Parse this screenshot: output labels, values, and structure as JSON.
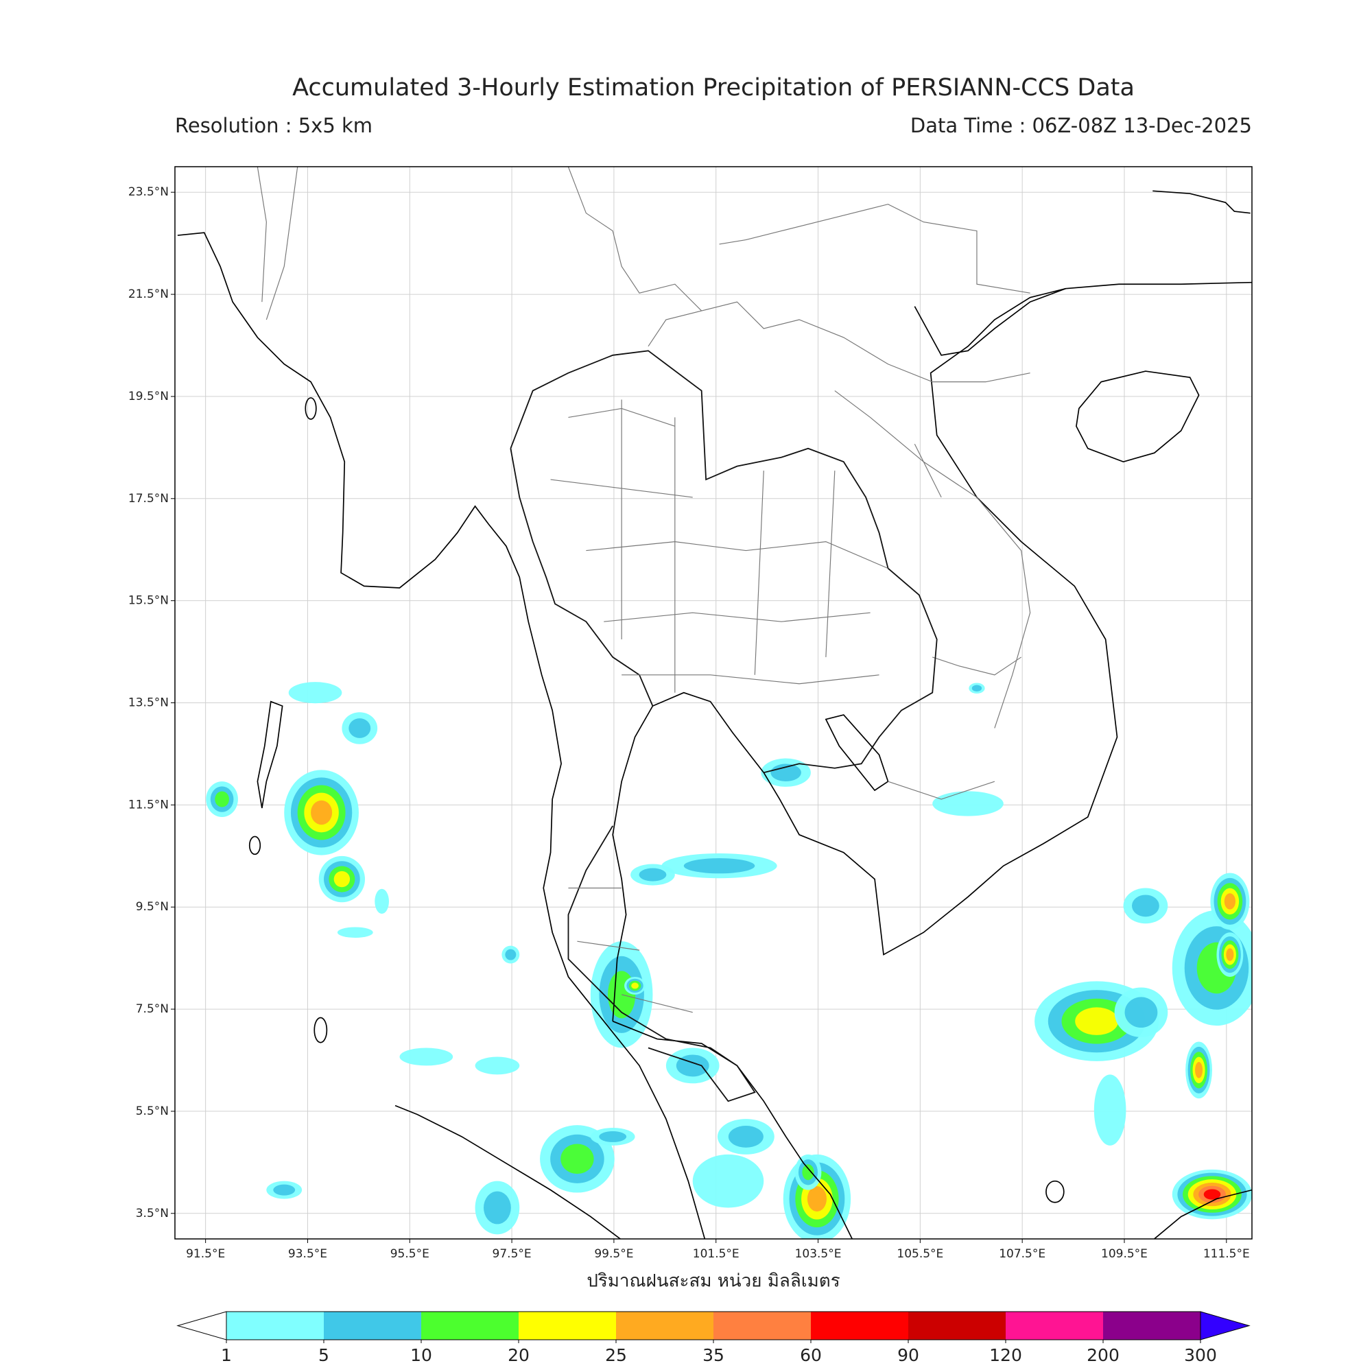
{
  "title": "Accumulated 3-Hourly Estimation Precipitation of PERSIANN-CCS Data",
  "resolution": "Resolution : 5x5 km",
  "data_time": "Data Time : 06Z-08Z 13-Dec-2025",
  "map": {
    "lon_lim": [
      90.9,
      112.0
    ],
    "lat_lim": [
      3.0,
      24.0
    ],
    "lon_ticks": [
      {
        "value": 91.5,
        "label": "91.5°E"
      },
      {
        "value": 93.5,
        "label": "93.5°E"
      },
      {
        "value": 95.5,
        "label": "95.5°E"
      },
      {
        "value": 97.5,
        "label": "97.5°E"
      },
      {
        "value": 99.5,
        "label": "99.5°E"
      },
      {
        "value": 101.5,
        "label": "101.5°E"
      },
      {
        "value": 103.5,
        "label": "103.5°E"
      },
      {
        "value": 105.5,
        "label": "105.5°E"
      },
      {
        "value": 107.5,
        "label": "107.5°E"
      },
      {
        "value": 109.5,
        "label": "109.5°E"
      },
      {
        "value": 111.5,
        "label": "111.5°E"
      }
    ],
    "lat_ticks": [
      {
        "value": 23.5,
        "label": "23.5°N"
      },
      {
        "value": 21.5,
        "label": "21.5°N"
      },
      {
        "value": 19.5,
        "label": "19.5°N"
      },
      {
        "value": 17.5,
        "label": "17.5°N"
      },
      {
        "value": 15.5,
        "label": "15.5°N"
      },
      {
        "value": 13.5,
        "label": "13.5°N"
      },
      {
        "value": 11.5,
        "label": "11.5°N"
      },
      {
        "value": 9.5,
        "label": "9.5°N"
      },
      {
        "value": 7.5,
        "label": "7.5°N"
      },
      {
        "value": 5.5,
        "label": "5.5°N"
      },
      {
        "value": 3.5,
        "label": "3.5°N"
      }
    ],
    "grid": true,
    "x_label": "ปริมาณฝนสะสม หน่วย มิลลิเมตร"
  },
  "colorbar": {
    "levels": [
      1,
      5,
      10,
      20,
      25,
      35,
      60,
      90,
      120,
      200,
      300
    ],
    "colors": [
      "#80ffff",
      "#40c8e8",
      "#4cff2e",
      "#ffff00",
      "#ffaa20",
      "#ff8040",
      "#ff0000",
      "#cc0000",
      "#ff1493",
      "#8b008b"
    ],
    "under_color": "#ffffff",
    "over_color": "#3300ff"
  }
}
